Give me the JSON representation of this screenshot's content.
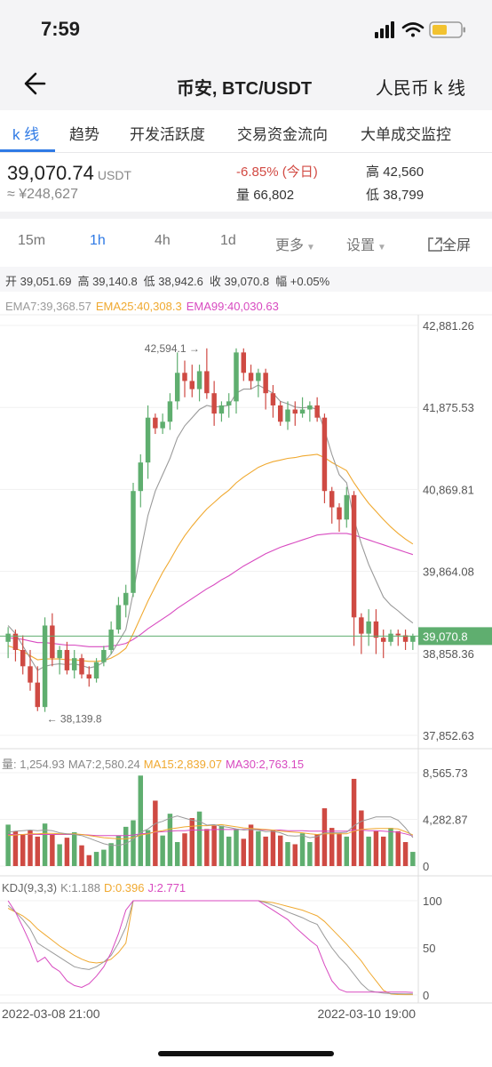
{
  "status": {
    "time": "7:59"
  },
  "nav": {
    "back_icon": "arrow-left-icon",
    "title": "币安, BTC/USDT",
    "right_label": "人民币 k 线"
  },
  "tabs": [
    {
      "label": "k 线",
      "active": true
    },
    {
      "label": "趋势",
      "active": false
    },
    {
      "label": "开发活跃度",
      "active": false
    },
    {
      "label": "交易资金流向",
      "active": false
    },
    {
      "label": "大单成交监控",
      "active": false
    }
  ],
  "price": {
    "last": "39,070.74",
    "unit": "USDT",
    "cny": "≈ ¥248,627",
    "change": "-6.85% (今日)",
    "volume_label": "量",
    "volume": "66,802",
    "high_label": "高",
    "high": "42,560",
    "low_label": "低",
    "low": "38,799"
  },
  "intervals": {
    "i15m": "15m",
    "i1h": "1h",
    "i4h": "4h",
    "i1d": "1d",
    "more": "更多",
    "settings": "设置",
    "fullscreen": "全屏",
    "fullscreen_icon": "fullscreen-icon",
    "active": "1h"
  },
  "ohlc": {
    "open": "开 39,051.69",
    "high": "高 39,140.8",
    "low": "低 38,942.6",
    "close": "收 39,070.8",
    "amp": "幅 +0.05%"
  },
  "ema_legend": {
    "ema7": "EMA7:39,368.57",
    "ema25": "EMA25:40,308.3",
    "ema99": "EMA99:40,030.63"
  },
  "vol_legend": {
    "vol": "量: 1,254.93",
    "ma7": "MA7:2,580.24",
    "ma15": "MA15:2,839.07",
    "ma30": "MA30:2,763.15"
  },
  "kdj_legend": {
    "name": "KDJ(9,3,3)",
    "k": "K:1.188",
    "d": "D:0.396",
    "j": "J:2.771"
  },
  "colors": {
    "up": "#5fae6f",
    "down": "#cf4a43",
    "ema7": "#9a9a9a",
    "ema25": "#f0a930",
    "ema99": "#d84ac0",
    "accent": "#2f7ae5"
  },
  "chart_data": {
    "type": "candlestick",
    "price_axis_labels": [
      "42,881.26",
      "41,875.53",
      "40,869.81",
      "39,864.08",
      "38,858.36",
      "37,852.63"
    ],
    "price_ylim": [
      37852.63,
      42881.26
    ],
    "last_price_tag": "39,070.8",
    "max_annotation": "42,594.1",
    "min_annotation": "38,139.8",
    "x_labels": [
      "2022-03-08 21:00",
      "2022-03-10 19:00"
    ],
    "candles": [
      [
        39000,
        39180,
        38800,
        39100
      ],
      [
        39100,
        39150,
        38760,
        38900
      ],
      [
        38900,
        39080,
        38600,
        38700
      ],
      [
        38700,
        38900,
        38400,
        38500
      ],
      [
        38500,
        38700,
        38150,
        38200
      ],
      [
        38200,
        39300,
        38140,
        39200
      ],
      [
        39200,
        39350,
        38700,
        38800
      ],
      [
        38800,
        38950,
        38600,
        38900
      ],
      [
        38900,
        39000,
        38600,
        38650
      ],
      [
        38650,
        38900,
        38550,
        38800
      ],
      [
        38800,
        38850,
        38550,
        38600
      ],
      [
        38600,
        38700,
        38450,
        38550
      ],
      [
        38550,
        38800,
        38500,
        38750
      ],
      [
        38750,
        38950,
        38700,
        38900
      ],
      [
        38900,
        39250,
        38850,
        39150
      ],
      [
        39150,
        39550,
        39100,
        39450
      ],
      [
        39450,
        39700,
        39300,
        39600
      ],
      [
        39600,
        40950,
        39550,
        40850
      ],
      [
        40850,
        41300,
        40650,
        41200
      ],
      [
        41200,
        41900,
        41000,
        41750
      ],
      [
        41750,
        41800,
        41550,
        41620
      ],
      [
        41620,
        41800,
        41550,
        41700
      ],
      [
        41700,
        42050,
        41600,
        41950
      ],
      [
        41950,
        42550,
        41850,
        42300
      ],
      [
        42300,
        42450,
        42000,
        42200
      ],
      [
        42200,
        42400,
        42000,
        42100
      ],
      [
        42100,
        42400,
        41950,
        42320
      ],
      [
        42320,
        42600,
        41980,
        42050
      ],
      [
        42050,
        42200,
        41650,
        41800
      ],
      [
        41800,
        41950,
        41700,
        41900
      ],
      [
        41900,
        42050,
        41750,
        41950
      ],
      [
        41950,
        42600,
        41800,
        42550
      ],
      [
        42550,
        42600,
        42200,
        42300
      ],
      [
        42300,
        42400,
        42100,
        42200
      ],
      [
        42200,
        42350,
        42000,
        42300
      ],
      [
        42300,
        42350,
        41850,
        42050
      ],
      [
        42050,
        42150,
        41750,
        41900
      ],
      [
        41900,
        41950,
        41650,
        41700
      ],
      [
        41700,
        41950,
        41600,
        41850
      ],
      [
        41850,
        41950,
        41650,
        41800
      ],
      [
        41800,
        42000,
        41750,
        41850
      ],
      [
        41850,
        41950,
        41700,
        41900
      ],
      [
        41900,
        42000,
        41700,
        41750
      ],
      [
        41750,
        41800,
        40700,
        40850
      ],
      [
        40850,
        40900,
        40450,
        40650
      ],
      [
        40650,
        40700,
        40350,
        40500
      ],
      [
        40500,
        40900,
        40400,
        40800
      ],
      [
        40800,
        40850,
        38950,
        39300
      ],
      [
        39300,
        39350,
        38850,
        39100
      ],
      [
        39100,
        39400,
        38950,
        39250
      ],
      [
        39250,
        39400,
        38850,
        39050
      ],
      [
        39050,
        39150,
        38800,
        39000
      ],
      [
        39000,
        39150,
        38950,
        39100
      ],
      [
        39100,
        39150,
        38950,
        39080
      ],
      [
        39080,
        39150,
        38900,
        39000
      ],
      [
        39000,
        39100,
        38900,
        39070
      ]
    ],
    "ema7": [
      39200,
      39100,
      38950,
      38800,
      38650,
      38700,
      38720,
      38730,
      38720,
      38730,
      38710,
      38680,
      38700,
      38750,
      38850,
      39000,
      39150,
      39600,
      40100,
      40550,
      40850,
      41050,
      41250,
      41500,
      41650,
      41750,
      41850,
      41900,
      41880,
      41890,
      41900,
      42050,
      42100,
      42100,
      42150,
      42100,
      42050,
      41950,
      41920,
      41880,
      41870,
      41880,
      41850,
      41600,
      41300,
      41050,
      40950,
      40500,
      40200,
      39950,
      39750,
      39550,
      39450,
      39380,
      39300,
      39230
    ],
    "ema25": [
      38950,
      38920,
      38880,
      38830,
      38780,
      38790,
      38790,
      38790,
      38780,
      38780,
      38770,
      38760,
      38760,
      38770,
      38800,
      38850,
      38920,
      39100,
      39300,
      39500,
      39680,
      39850,
      40000,
      40160,
      40300,
      40420,
      40530,
      40630,
      40710,
      40790,
      40860,
      40950,
      41020,
      41080,
      41140,
      41180,
      41210,
      41230,
      41250,
      41260,
      41280,
      41290,
      41300,
      41260,
      41200,
      41150,
      41100,
      40950,
      40820,
      40700,
      40600,
      40500,
      40410,
      40330,
      40260,
      40200
    ],
    "ema99": [
      39050,
      39040,
      39030,
      39010,
      38990,
      38990,
      38980,
      38970,
      38960,
      38960,
      38950,
      38940,
      38940,
      38940,
      38950,
      38960,
      38980,
      39030,
      39090,
      39160,
      39220,
      39280,
      39340,
      39410,
      39470,
      39530,
      39590,
      39650,
      39700,
      39760,
      39810,
      39870,
      39930,
      39980,
      40030,
      40080,
      40120,
      40160,
      40190,
      40220,
      40250,
      40280,
      40310,
      40320,
      40330,
      40330,
      40330,
      40310,
      40280,
      40250,
      40220,
      40190,
      40160,
      40130,
      40100,
      40070
    ],
    "vol_axis_labels": [
      "8,565.73",
      "4,282.87",
      "0"
    ],
    "vol_ylim": [
      0,
      8565.73
    ],
    "volume": [
      3800,
      3200,
      2900,
      3300,
      2700,
      3900,
      2900,
      2000,
      2600,
      3100,
      1900,
      1000,
      1300,
      1500,
      2100,
      2800,
      3600,
      4200,
      8300,
      3300,
      6000,
      2800,
      4800,
      2200,
      3000,
      4400,
      5000,
      3400,
      3700,
      3700,
      2700,
      3400,
      2500,
      3800,
      3200,
      2700,
      3300,
      2800,
      2200,
      2000,
      3000,
      2200,
      2900,
      5300,
      3500,
      3000,
      2700,
      8000,
      5100,
      2700,
      3200,
      2700,
      3500,
      3200,
      2200,
      1300
    ],
    "vol_ma7": [
      3100,
      3200,
      3250,
      3300,
      3250,
      3300,
      3250,
      3050,
      2950,
      2900,
      2800,
      2550,
      2300,
      2050,
      1900,
      1900,
      2050,
      2450,
      3100,
      3400,
      3900,
      4100,
      4400,
      4600,
      4400,
      4200,
      4100,
      3750,
      3800,
      3650,
      3550,
      3400,
      3300,
      3350,
      3300,
      3150,
      3200,
      3050,
      2800,
      2750,
      2800,
      2600,
      2700,
      3050,
      3050,
      3050,
      3100,
      3700,
      4100,
      4300,
      4500,
      4500,
      4500,
      4200,
      3500,
      2600
    ],
    "vol_ma15": [
      2800,
      2850,
      2900,
      2950,
      2950,
      3000,
      3000,
      2950,
      2950,
      2950,
      2900,
      2800,
      2700,
      2600,
      2550,
      2500,
      2500,
      2600,
      2850,
      2950,
      3150,
      3250,
      3400,
      3500,
      3600,
      3650,
      3700,
      3700,
      3750,
      3800,
      3700,
      3600,
      3500,
      3450,
      3400,
      3350,
      3300,
      3200,
      3150,
      3100,
      3050,
      2950,
      2900,
      2950,
      2950,
      2950,
      2950,
      3200,
      3350,
      3400,
      3450,
      3450,
      3450,
      3400,
      3150,
      2850
    ],
    "vol_ma30": [
      2900,
      2900,
      2900,
      2900,
      2900,
      2900,
      2900,
      2900,
      2900,
      2900,
      2900,
      2850,
      2800,
      2800,
      2800,
      2800,
      2800,
      2850,
      2950,
      3000,
      3100,
      3150,
      3200,
      3250,
      3250,
      3300,
      3300,
      3300,
      3350,
      3350,
      3350,
      3350,
      3350,
      3350,
      3350,
      3300,
      3300,
      3300,
      3250,
      3250,
      3250,
      3200,
      3200,
      3200,
      3200,
      3200,
      3200,
      3300,
      3300,
      3250,
      3250,
      3200,
      3150,
      3100,
      2950,
      2760
    ],
    "kdj_axis_labels": [
      "100",
      "50",
      "0"
    ],
    "kdj_ylim": [
      0,
      100
    ],
    "kdj_k": [
      95,
      88,
      80,
      70,
      55,
      50,
      45,
      40,
      35,
      30,
      28,
      27,
      30,
      35,
      42,
      55,
      72,
      100,
      100,
      100,
      100,
      100,
      100,
      100,
      100,
      100,
      100,
      100,
      100,
      100,
      100,
      100,
      100,
      100,
      100,
      98,
      95,
      92,
      88,
      85,
      82,
      78,
      75,
      62,
      50,
      40,
      32,
      22,
      12,
      5,
      3,
      2,
      1.5,
      1.3,
      1.2,
      1.188
    ],
    "kdj_d": [
      92,
      88,
      84,
      78,
      70,
      64,
      58,
      52,
      47,
      42,
      38,
      35,
      34,
      35,
      38,
      45,
      55,
      100,
      100,
      100,
      100,
      100,
      100,
      100,
      100,
      100,
      100,
      100,
      100,
      100,
      100,
      100,
      100,
      100,
      100,
      99,
      98,
      96,
      94,
      92,
      90,
      87,
      84,
      78,
      70,
      62,
      54,
      45,
      36,
      25,
      15,
      5,
      1,
      0.5,
      0.4,
      0.396
    ],
    "kdj_j": [
      100,
      88,
      72,
      55,
      35,
      40,
      30,
      25,
      15,
      10,
      8,
      12,
      20,
      30,
      45,
      65,
      90,
      100,
      100,
      100,
      100,
      100,
      100,
      100,
      100,
      100,
      100,
      100,
      100,
      100,
      100,
      100,
      100,
      100,
      100,
      95,
      90,
      85,
      80,
      72,
      65,
      58,
      52,
      32,
      15,
      6,
      3,
      3,
      3,
      3,
      3,
      3,
      3,
      3,
      3,
      2.771
    ]
  }
}
